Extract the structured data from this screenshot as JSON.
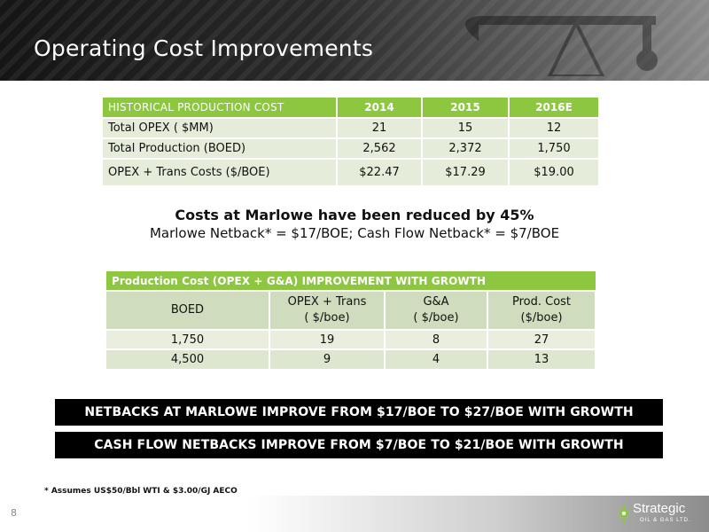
{
  "title": "Operating Cost Improvements",
  "historical_table": {
    "headers": [
      "HISTORICAL PRODUCTION COST",
      "2014",
      "2015",
      "2016E"
    ],
    "rows": [
      [
        "Total OPEX ( $MM)",
        "21",
        "15",
        "12"
      ],
      [
        "Total Production (BOED)",
        "2,562",
        "2,372",
        "1,750"
      ],
      [
        "OPEX + Trans Costs ($/BOE)",
        "$22.47",
        "$17.29",
        "$19.00"
      ]
    ]
  },
  "summary": {
    "headline": "Costs at Marlowe have been reduced by 45%",
    "subline": "Marlowe Netback* = $17/BOE; Cash Flow Netback* = $7/BOE"
  },
  "growth_table": {
    "title": "Production Cost (OPEX + G&A)  IMPROVEMENT WITH GROWTH",
    "columns": [
      {
        "line1": "BOED",
        "line2": ""
      },
      {
        "line1": "OPEX + Trans",
        "line2": "( $/boe)"
      },
      {
        "line1": "G&A",
        "line2": "( $/boe)"
      },
      {
        "line1": "Prod. Cost",
        "line2": "($/boe)"
      }
    ],
    "rows": [
      [
        "1,750",
        "19",
        "8",
        "27"
      ],
      [
        "4,500",
        "9",
        "4",
        "13"
      ]
    ]
  },
  "banners": [
    "NETBACKS AT MARLOWE IMPROVE FROM $17/BOE TO $27/BOE WITH GROWTH",
    "CASH FLOW NETBACKS IMPROVE FROM $7/BOE TO $21/BOE WITH GROWTH"
  ],
  "footnote": "* Assumes US$50/Bbl WTI & $3.00/GJ AECO",
  "page_number": "8",
  "logo": {
    "name": "Strategic",
    "tagline": "OIL & GAS LTD.",
    "icon": "star-leaf-icon"
  },
  "colors": {
    "accent_green": "#8dc63f",
    "row_light": "#e5ecd9",
    "banner_bg": "#000000"
  }
}
